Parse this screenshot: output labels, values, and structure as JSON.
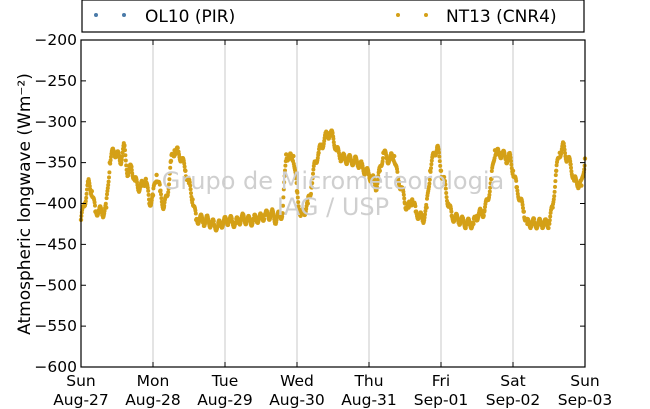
{
  "chart_data": {
    "type": "scatter",
    "ylabel": "Atmospheric longwave (Wm⁻²)",
    "ylim": [
      -600,
      -200
    ],
    "yticks": [
      -200,
      -250,
      -300,
      -350,
      -400,
      -450,
      -500,
      -550,
      -600
    ],
    "xlim": [
      0,
      7
    ],
    "xticks": [
      {
        "x": 0,
        "day": "Sun",
        "date": "Aug-27"
      },
      {
        "x": 1,
        "day": "Mon",
        "date": "Aug-28"
      },
      {
        "x": 2,
        "day": "Tue",
        "date": "Aug-29"
      },
      {
        "x": 3,
        "day": "Wed",
        "date": "Aug-30"
      },
      {
        "x": 4,
        "day": "Thu",
        "date": "Aug-31"
      },
      {
        "x": 5,
        "day": "Fri",
        "date": "Sep-01"
      },
      {
        "x": 6,
        "day": "Sat",
        "date": "Sep-02"
      },
      {
        "x": 7,
        "day": "Sun",
        "date": "Sep-03"
      }
    ],
    "grid": "vertical",
    "legend_position": "top",
    "watermark": [
      "Grupo de Micrometeorologia",
      "IAG / USP"
    ],
    "series": [
      {
        "name": "OL10 (PIR)",
        "color": "#4a7aa8",
        "x": [],
        "y": []
      },
      {
        "name": "NT13 (CNR4)",
        "color": "#d4a017",
        "x": [
          0.0,
          0.05,
          0.1,
          0.15,
          0.2,
          0.25,
          0.3,
          0.35,
          0.4,
          0.45,
          0.5,
          0.55,
          0.6,
          0.65,
          0.7,
          0.75,
          0.8,
          0.85,
          0.9,
          0.95,
          1.0,
          1.05,
          1.1,
          1.15,
          1.2,
          1.25,
          1.3,
          1.35,
          1.4,
          1.45,
          1.5,
          1.55,
          1.6,
          1.65,
          1.7,
          1.75,
          1.8,
          1.85,
          1.9,
          1.95,
          2.0,
          2.05,
          2.1,
          2.15,
          2.2,
          2.25,
          2.3,
          2.35,
          2.4,
          2.45,
          2.5,
          2.55,
          2.6,
          2.65,
          2.7,
          2.75,
          2.8,
          2.85,
          2.9,
          2.95,
          3.0,
          3.05,
          3.1,
          3.15,
          3.2,
          3.25,
          3.3,
          3.35,
          3.4,
          3.45,
          3.5,
          3.55,
          3.6,
          3.65,
          3.7,
          3.75,
          3.8,
          3.85,
          3.9,
          3.95,
          4.0,
          4.05,
          4.1,
          4.15,
          4.2,
          4.25,
          4.3,
          4.35,
          4.4,
          4.45,
          4.5,
          4.55,
          4.6,
          4.65,
          4.7,
          4.75,
          4.8,
          4.85,
          4.9,
          4.95,
          5.0,
          5.05,
          5.1,
          5.15,
          5.2,
          5.25,
          5.3,
          5.35,
          5.4,
          5.45,
          5.5,
          5.55,
          5.6,
          5.65,
          5.7,
          5.75,
          5.8,
          5.85,
          5.9,
          5.95,
          6.0,
          6.05,
          6.1,
          6.15,
          6.2,
          6.25,
          6.3,
          6.35,
          6.4,
          6.45,
          6.5,
          6.55,
          6.6,
          6.65,
          6.7,
          6.75,
          6.8,
          6.85,
          6.9,
          6.95,
          7.0
        ],
        "y": [
          -420,
          -400,
          -375,
          -385,
          -410,
          -408,
          -412,
          -405,
          -350,
          -335,
          -340,
          -348,
          -330,
          -365,
          -355,
          -372,
          -380,
          -378,
          -370,
          -400,
          -390,
          -365,
          -385,
          -405,
          -390,
          -348,
          -335,
          -338,
          -345,
          -360,
          -375,
          -395,
          -420,
          -418,
          -422,
          -420,
          -424,
          -426,
          -428,
          -424,
          -422,
          -420,
          -422,
          -424,
          -420,
          -418,
          -420,
          -422,
          -420,
          -418,
          -418,
          -414,
          -415,
          -412,
          -420,
          -415,
          -412,
          -340,
          -345,
          -342,
          -385,
          -415,
          -410,
          -400,
          -380,
          -350,
          -338,
          -328,
          -318,
          -314,
          -318,
          -335,
          -342,
          -345,
          -346,
          -347,
          -348,
          -350,
          -355,
          -360,
          -365,
          -370,
          -380,
          -360,
          -338,
          -345,
          -345,
          -342,
          -370,
          -380,
          -400,
          -405,
          -395,
          -410,
          -415,
          -420,
          -405,
          -360,
          -340,
          -330,
          -360,
          -375,
          -400,
          -415,
          -418,
          -420,
          -422,
          -425,
          -424,
          -425,
          -415,
          -412,
          -410,
          -395,
          -370,
          -335,
          -340,
          -338,
          -346,
          -342,
          -360,
          -380,
          -395,
          -410,
          -425,
          -424,
          -424,
          -425,
          -424,
          -425,
          -424,
          -405,
          -360,
          -338,
          -330,
          -345,
          -352,
          -372,
          -375,
          -378,
          -345
        ]
      }
    ]
  }
}
